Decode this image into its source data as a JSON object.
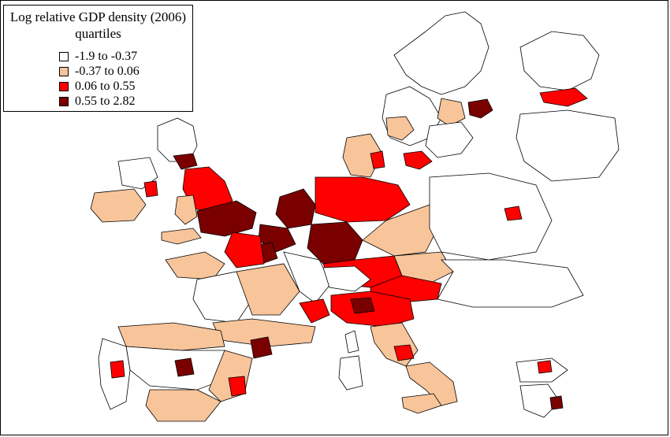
{
  "legend": {
    "title_line1": "Log relative GDP density (2006)",
    "title_line2": "quartiles",
    "items": [
      {
        "label": "-1.9 to -0.37",
        "color": "#ffffff"
      },
      {
        "label": "-0.37 to 0.06",
        "color": "#f8c49a"
      },
      {
        "label": "0.06 to 0.55",
        "color": "#ff0000"
      },
      {
        "label": "0.55 to 2.82",
        "color": "#7a0000"
      }
    ]
  },
  "colors": {
    "q1": "#ffffff",
    "q2": "#f8c49a",
    "q3": "#ff0000",
    "q4": "#7a0000"
  }
}
